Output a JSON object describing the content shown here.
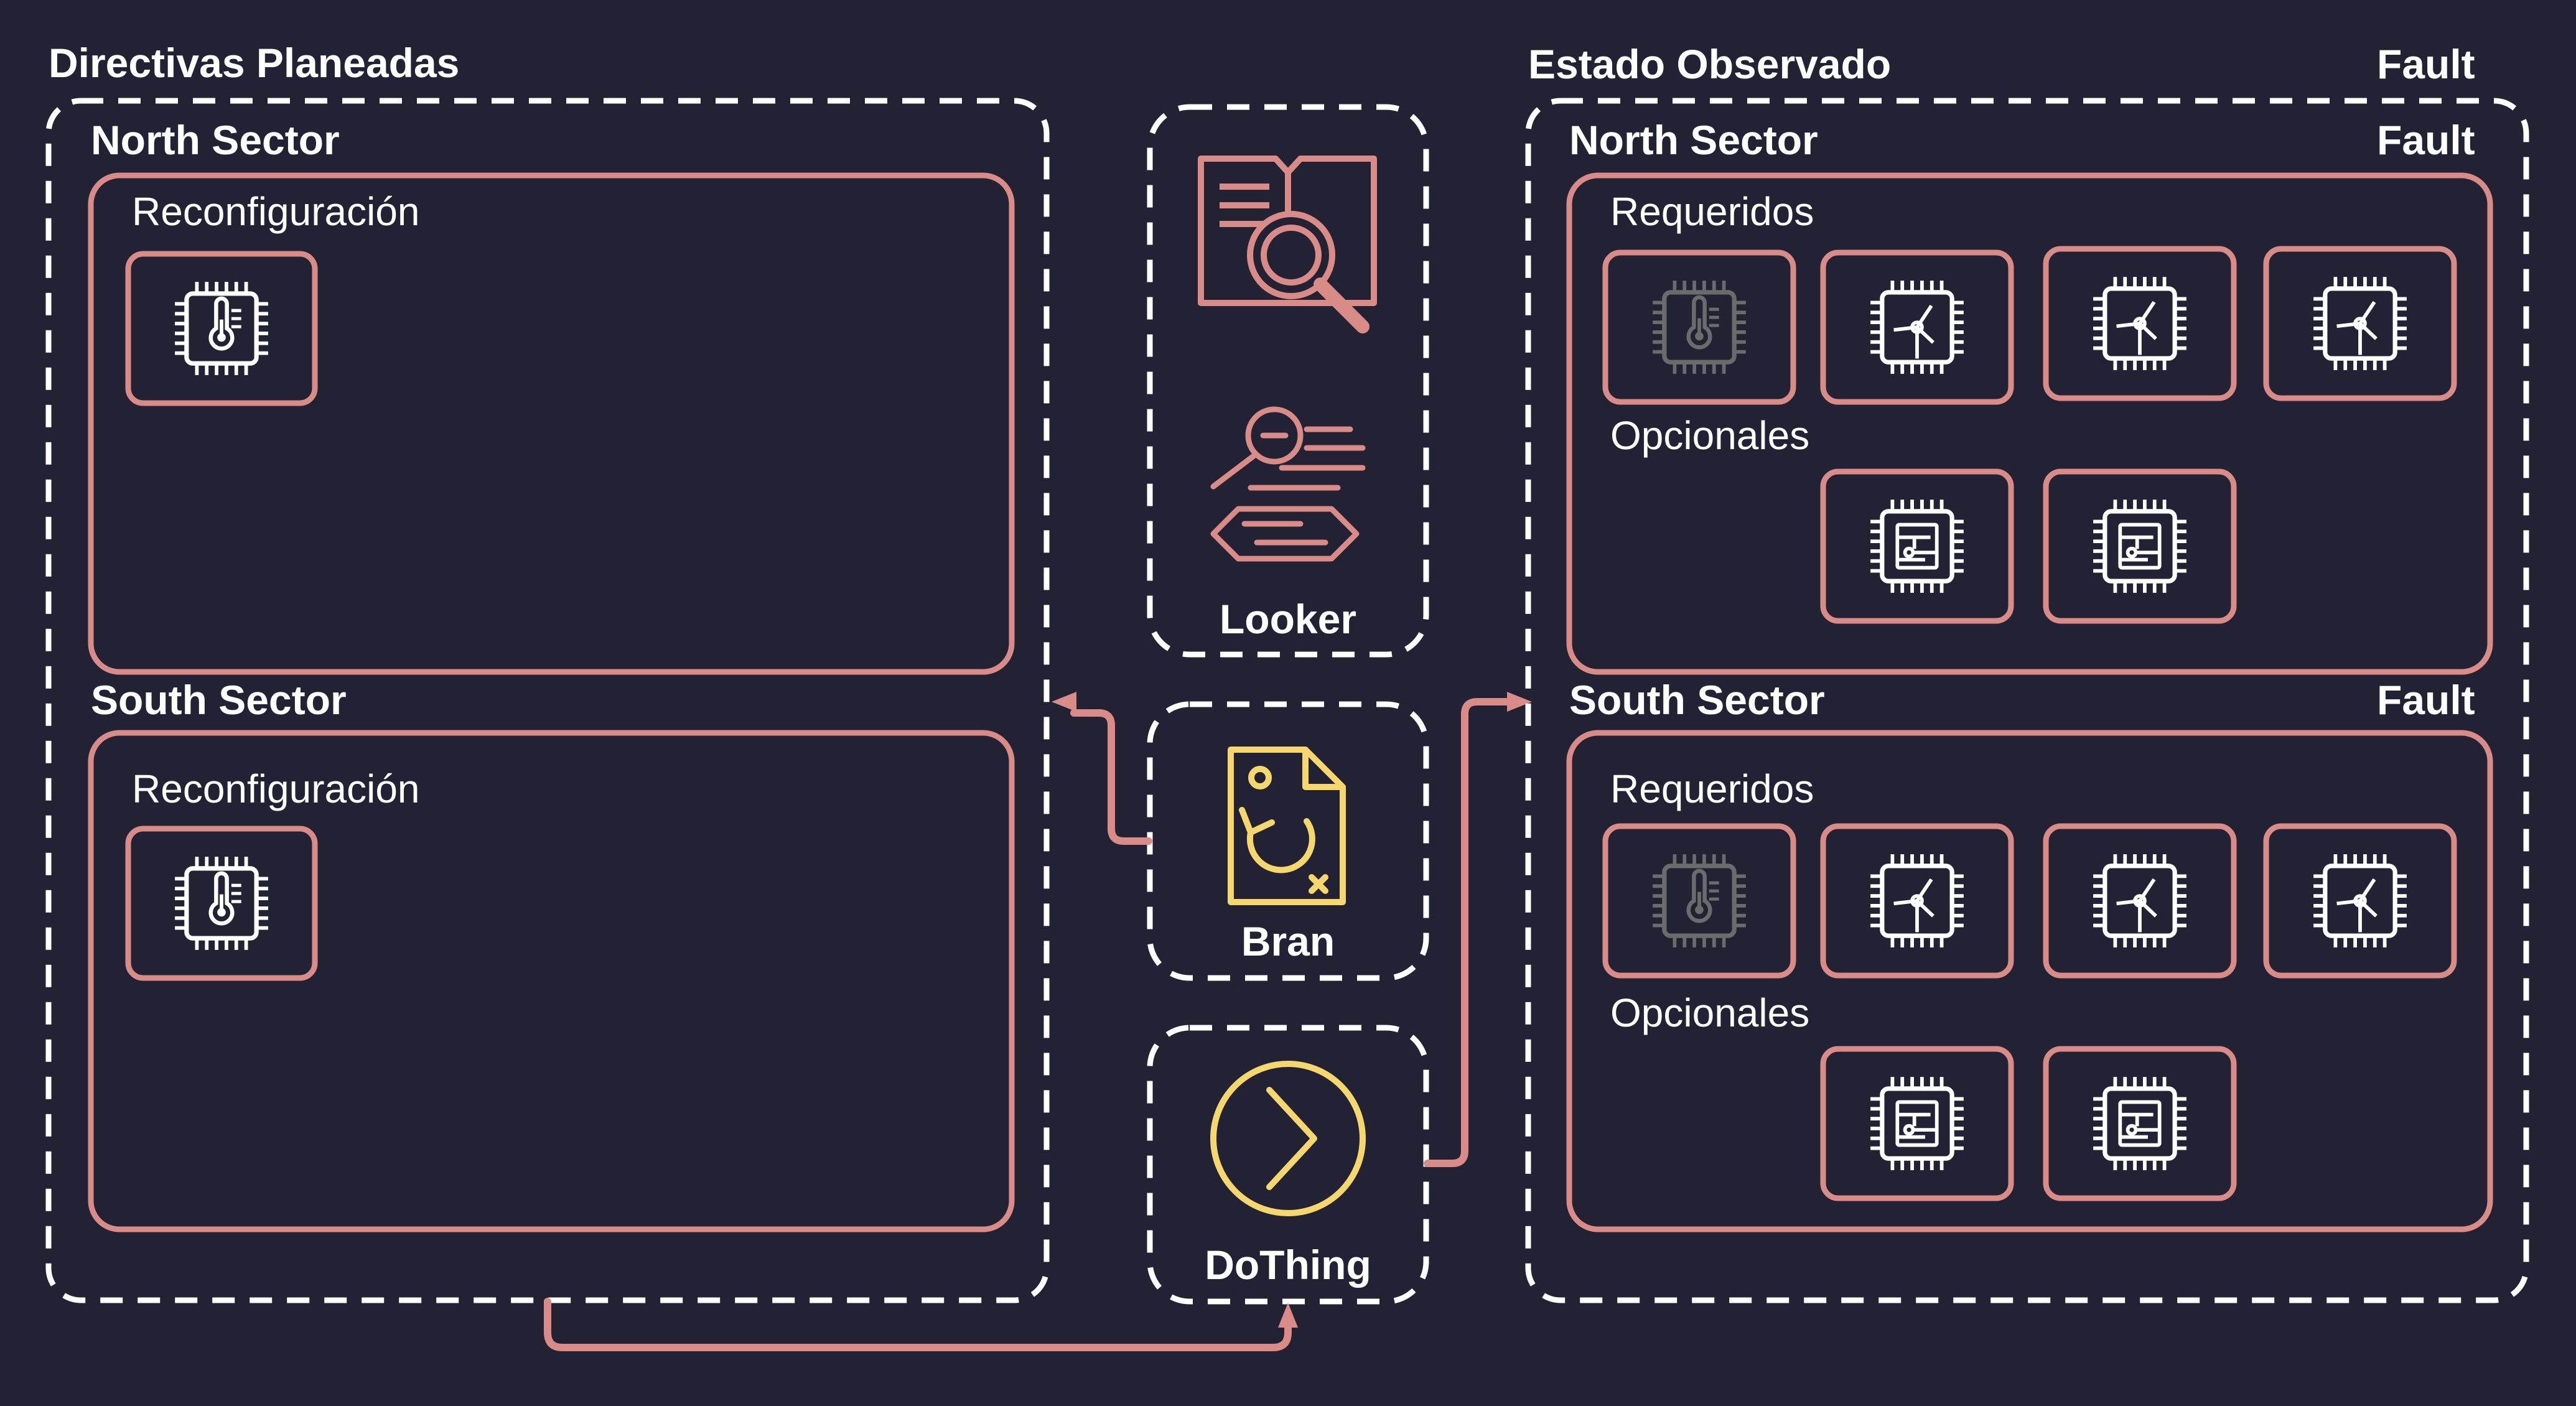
{
  "colors": {
    "background": "#232235",
    "accent": "#d98b88",
    "highlight": "#f5d76e",
    "dashed": "#ffffff",
    "muted": "#6b6b6b"
  },
  "planned": {
    "title": "Directivas Planeadas",
    "north": {
      "title": "North Sector",
      "section": "Reconfiguración",
      "chips": [
        "thermometer-chip-icon"
      ]
    },
    "south": {
      "title": "South Sector",
      "section": "Reconfiguración",
      "chips": [
        "thermometer-chip-icon"
      ]
    }
  },
  "tools": {
    "looker": {
      "label": "Looker",
      "icons": [
        "book-search-icon",
        "search-document-icon"
      ]
    },
    "bran": {
      "label": "Bran",
      "icon": "file-refresh-icon"
    },
    "dothing": {
      "label": "DoThing",
      "icon": "play-circle-icon"
    }
  },
  "observed": {
    "title": "Estado Observado",
    "status": "Fault",
    "north": {
      "title": "North Sector",
      "status": "Fault",
      "required_label": "Requeridos",
      "required": [
        "thermometer-chip-icon (disabled)",
        "turbine-chip-icon",
        "turbine-chip-icon",
        "turbine-chip-icon"
      ],
      "optional_label": "Opcionales",
      "optional": [
        "circuit-chip-icon",
        "circuit-chip-icon"
      ]
    },
    "south": {
      "title": "South Sector",
      "status": "Fault",
      "required_label": "Requeridos",
      "required": [
        "thermometer-chip-icon (disabled)",
        "turbine-chip-icon",
        "turbine-chip-icon",
        "turbine-chip-icon"
      ],
      "optional_label": "Opcionales",
      "optional": [
        "circuit-chip-icon",
        "circuit-chip-icon"
      ]
    }
  }
}
